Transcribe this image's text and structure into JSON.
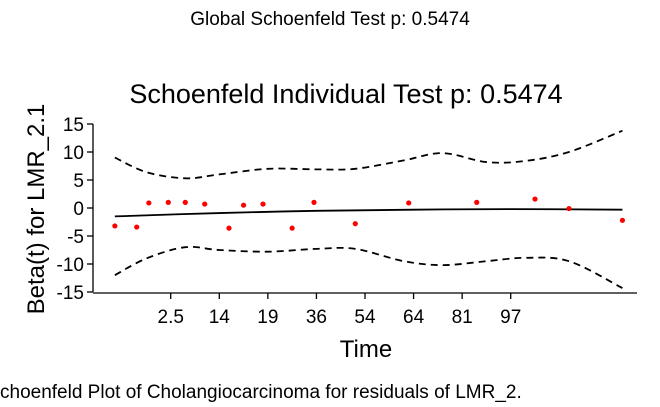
{
  "figure": {
    "suptitle": "Global Schoenfeld Test p: 0.5474",
    "caption": "choenfeld Plot of Cholangiocarcinoma for residuals of LMR_2."
  },
  "chart_data": {
    "type": "scatter",
    "title": "Schoenfeld Individual Test p: 0.5474",
    "xlabel": "Time",
    "ylabel": "Beta(t) for LMR_2.1",
    "ylim": [
      -15,
      15
    ],
    "xlim": [
      0.4,
      11.6
    ],
    "xticks": [
      {
        "value": 2,
        "label": "2.5"
      },
      {
        "value": 3,
        "label": "14"
      },
      {
        "value": 4,
        "label": "19"
      },
      {
        "value": 5,
        "label": "36"
      },
      {
        "value": 6,
        "label": "54"
      },
      {
        "value": 7,
        "label": "64"
      },
      {
        "value": 8,
        "label": "81"
      },
      {
        "value": 9,
        "label": "97"
      }
    ],
    "yticks": [
      {
        "value": 15,
        "label": "15"
      },
      {
        "value": 10,
        "label": "10"
      },
      {
        "value": 5,
        "label": "5"
      },
      {
        "value": 0,
        "label": "0"
      },
      {
        "value": -5,
        "label": "-5"
      },
      {
        "value": -10,
        "label": "-10"
      },
      {
        "value": -15,
        "label": "-15"
      }
    ],
    "grid": false,
    "legend": "none",
    "series": [
      {
        "kind": "points",
        "color": "#ff0000",
        "x": [
          0.85,
          1.3,
          1.55,
          1.95,
          2.3,
          2.7,
          3.2,
          3.5,
          3.9,
          4.5,
          4.95,
          5.8,
          6.9,
          8.3,
          9.5,
          10.2,
          11.3
        ],
        "y": [
          -3.2,
          -3.4,
          0.9,
          1.0,
          1.0,
          0.7,
          -3.6,
          0.5,
          0.7,
          -3.6,
          1.0,
          -2.8,
          0.9,
          1.0,
          1.6,
          -0.1,
          -2.2
        ]
      },
      {
        "kind": "fit",
        "color": "#000000",
        "x": [
          0.85,
          3.0,
          5.0,
          7.0,
          9.0,
          11.3
        ],
        "y": [
          -1.5,
          -0.9,
          -0.5,
          -0.3,
          -0.2,
          -0.3
        ]
      },
      {
        "kind": "upper_band",
        "color": "#000000",
        "linestyle": "dashed",
        "x": [
          0.85,
          1.5,
          2.3,
          3.0,
          4.0,
          5.0,
          5.8,
          6.8,
          7.6,
          8.5,
          9.3,
          10.2,
          11.3
        ],
        "y": [
          9.0,
          6.4,
          5.3,
          6.0,
          7.0,
          6.9,
          7.0,
          8.5,
          9.8,
          8.2,
          8.4,
          10.0,
          13.8
        ]
      },
      {
        "kind": "lower_band",
        "color": "#000000",
        "linestyle": "dashed",
        "x": [
          0.85,
          1.5,
          2.3,
          3.0,
          4.0,
          5.0,
          5.8,
          6.8,
          7.6,
          8.5,
          9.3,
          10.2,
          11.3
        ],
        "y": [
          -12.0,
          -9.0,
          -7.0,
          -7.5,
          -7.8,
          -7.3,
          -7.3,
          -9.5,
          -10.2,
          -9.5,
          -8.9,
          -9.5,
          -14.3
        ]
      }
    ]
  }
}
